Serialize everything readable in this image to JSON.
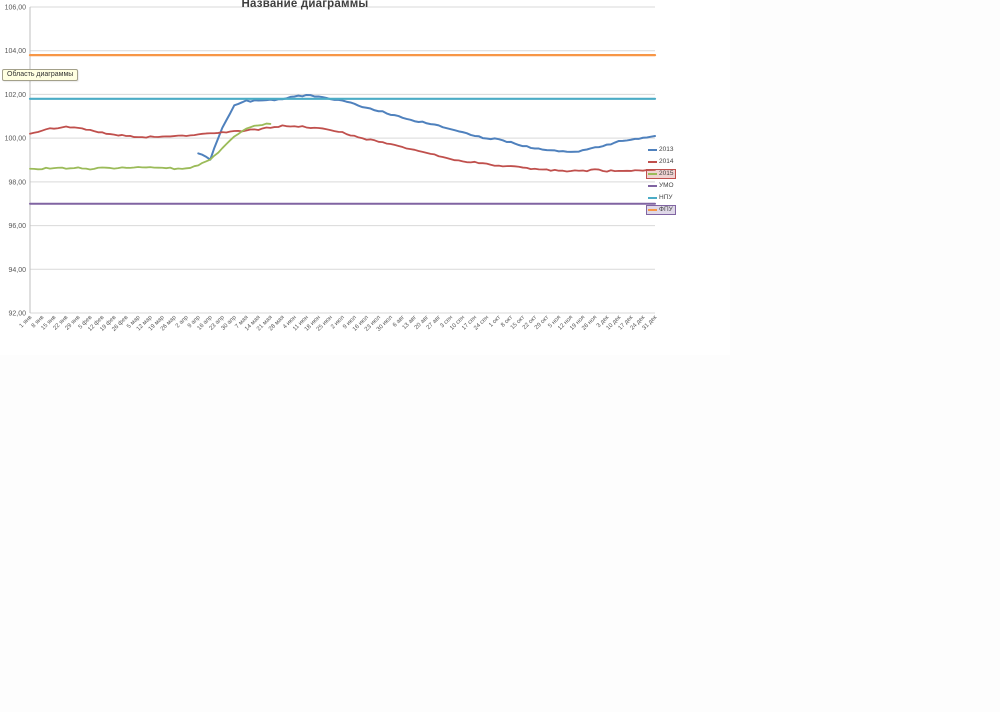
{
  "window": {
    "background": "#ffffff"
  },
  "tooltip": {
    "text": "Область диаграммы"
  },
  "chart_data": {
    "type": "line",
    "title": "Название диаграммы",
    "xlabel": "",
    "ylabel": "",
    "ylim": [
      92,
      106
    ],
    "ytick_step": 2,
    "grid": true,
    "legend_position": "right-overlay",
    "y_ticks": [
      "92,00",
      "94,00",
      "96,00",
      "98,00",
      "100,00",
      "102,00",
      "104,00",
      "106,00"
    ],
    "x_labels": [
      "1 янв",
      "8 янв",
      "15 янв",
      "22 янв",
      "29 янв",
      "5 фев",
      "12 фев",
      "19 фев",
      "26 фев",
      "5 мар",
      "12 мар",
      "19 мар",
      "26 мар",
      "2 апр",
      "9 апр",
      "16 апр",
      "23 апр",
      "30 апр",
      "7 мая",
      "14 мая",
      "21 мая",
      "28 мая",
      "4 июн",
      "11 июн",
      "18 июн",
      "25 июн",
      "2 июл",
      "9 июл",
      "16 июл",
      "23 июл",
      "30 июл",
      "6 авг",
      "13 авг",
      "20 авг",
      "27 авг",
      "3 сен",
      "10 сен",
      "17 сен",
      "24 сен",
      "1 окт",
      "8 окт",
      "15 окт",
      "22 окт",
      "29 окт",
      "5 ноя",
      "12 ноя",
      "19 ноя",
      "26 ноя",
      "3 дек",
      "10 дек",
      "17 дек",
      "24 дек",
      "31 дек"
    ],
    "layout": {
      "grid_color": "#d9d9d9",
      "axis_color": "#bfbfbf",
      "tick_color": "#595959",
      "title_color": "#3f3f3f"
    },
    "series": [
      {
        "name": "2013",
        "color": "#4f81bd",
        "width": 2.0,
        "start_index": 14,
        "values": [
          99.3,
          99.05,
          100.5,
          101.5,
          101.7,
          101.7,
          101.75,
          101.8,
          101.9,
          101.95,
          101.9,
          101.8,
          101.7,
          101.55,
          101.4,
          101.25,
          101.1,
          100.95,
          100.8,
          100.7,
          100.55,
          100.4,
          100.25,
          100.1,
          100.0,
          99.95,
          99.8,
          99.65,
          99.55,
          99.45,
          99.4,
          99.35,
          99.45,
          99.55,
          99.7,
          99.85,
          99.95,
          100.0,
          100.1
        ]
      },
      {
        "name": "2014",
        "color": "#c0504d",
        "width": 1.8,
        "start_index": 0,
        "values": [
          100.2,
          100.35,
          100.45,
          100.5,
          100.45,
          100.35,
          100.25,
          100.15,
          100.1,
          100.05,
          100.05,
          100.05,
          100.1,
          100.1,
          100.15,
          100.2,
          100.25,
          100.3,
          100.35,
          100.4,
          100.5,
          100.55,
          100.55,
          100.5,
          100.45,
          100.35,
          100.25,
          100.1,
          99.95,
          99.85,
          99.7,
          99.6,
          99.45,
          99.3,
          99.2,
          99.05,
          98.95,
          98.9,
          98.8,
          98.75,
          98.7,
          98.65,
          98.6,
          98.55,
          98.5,
          98.5,
          98.5,
          98.55,
          98.5,
          98.5,
          98.5,
          98.5,
          98.55
        ]
      },
      {
        "name": "2015",
        "color": "#9bbb59",
        "width": 1.8,
        "start_index": 0,
        "values": [
          98.6,
          98.6,
          98.65,
          98.6,
          98.65,
          98.6,
          98.65,
          98.6,
          98.65,
          98.65,
          98.7,
          98.65,
          98.6,
          98.6,
          98.75,
          99.0,
          99.55,
          100.1,
          100.45,
          100.6,
          100.65
        ],
        "legend_boxed": true,
        "legend_box_color": "#c0504d"
      },
      {
        "name": "УМО",
        "color": "#8064a2",
        "width": 2.0,
        "constant": 97.0
      },
      {
        "name": "НПУ",
        "color": "#4bacc6",
        "width": 2.2,
        "constant": 101.8
      },
      {
        "name": "ФПУ",
        "color": "#f79646",
        "width": 2.2,
        "constant": 103.8,
        "legend_boxed": true,
        "legend_box_color": "#8064a2"
      }
    ]
  }
}
